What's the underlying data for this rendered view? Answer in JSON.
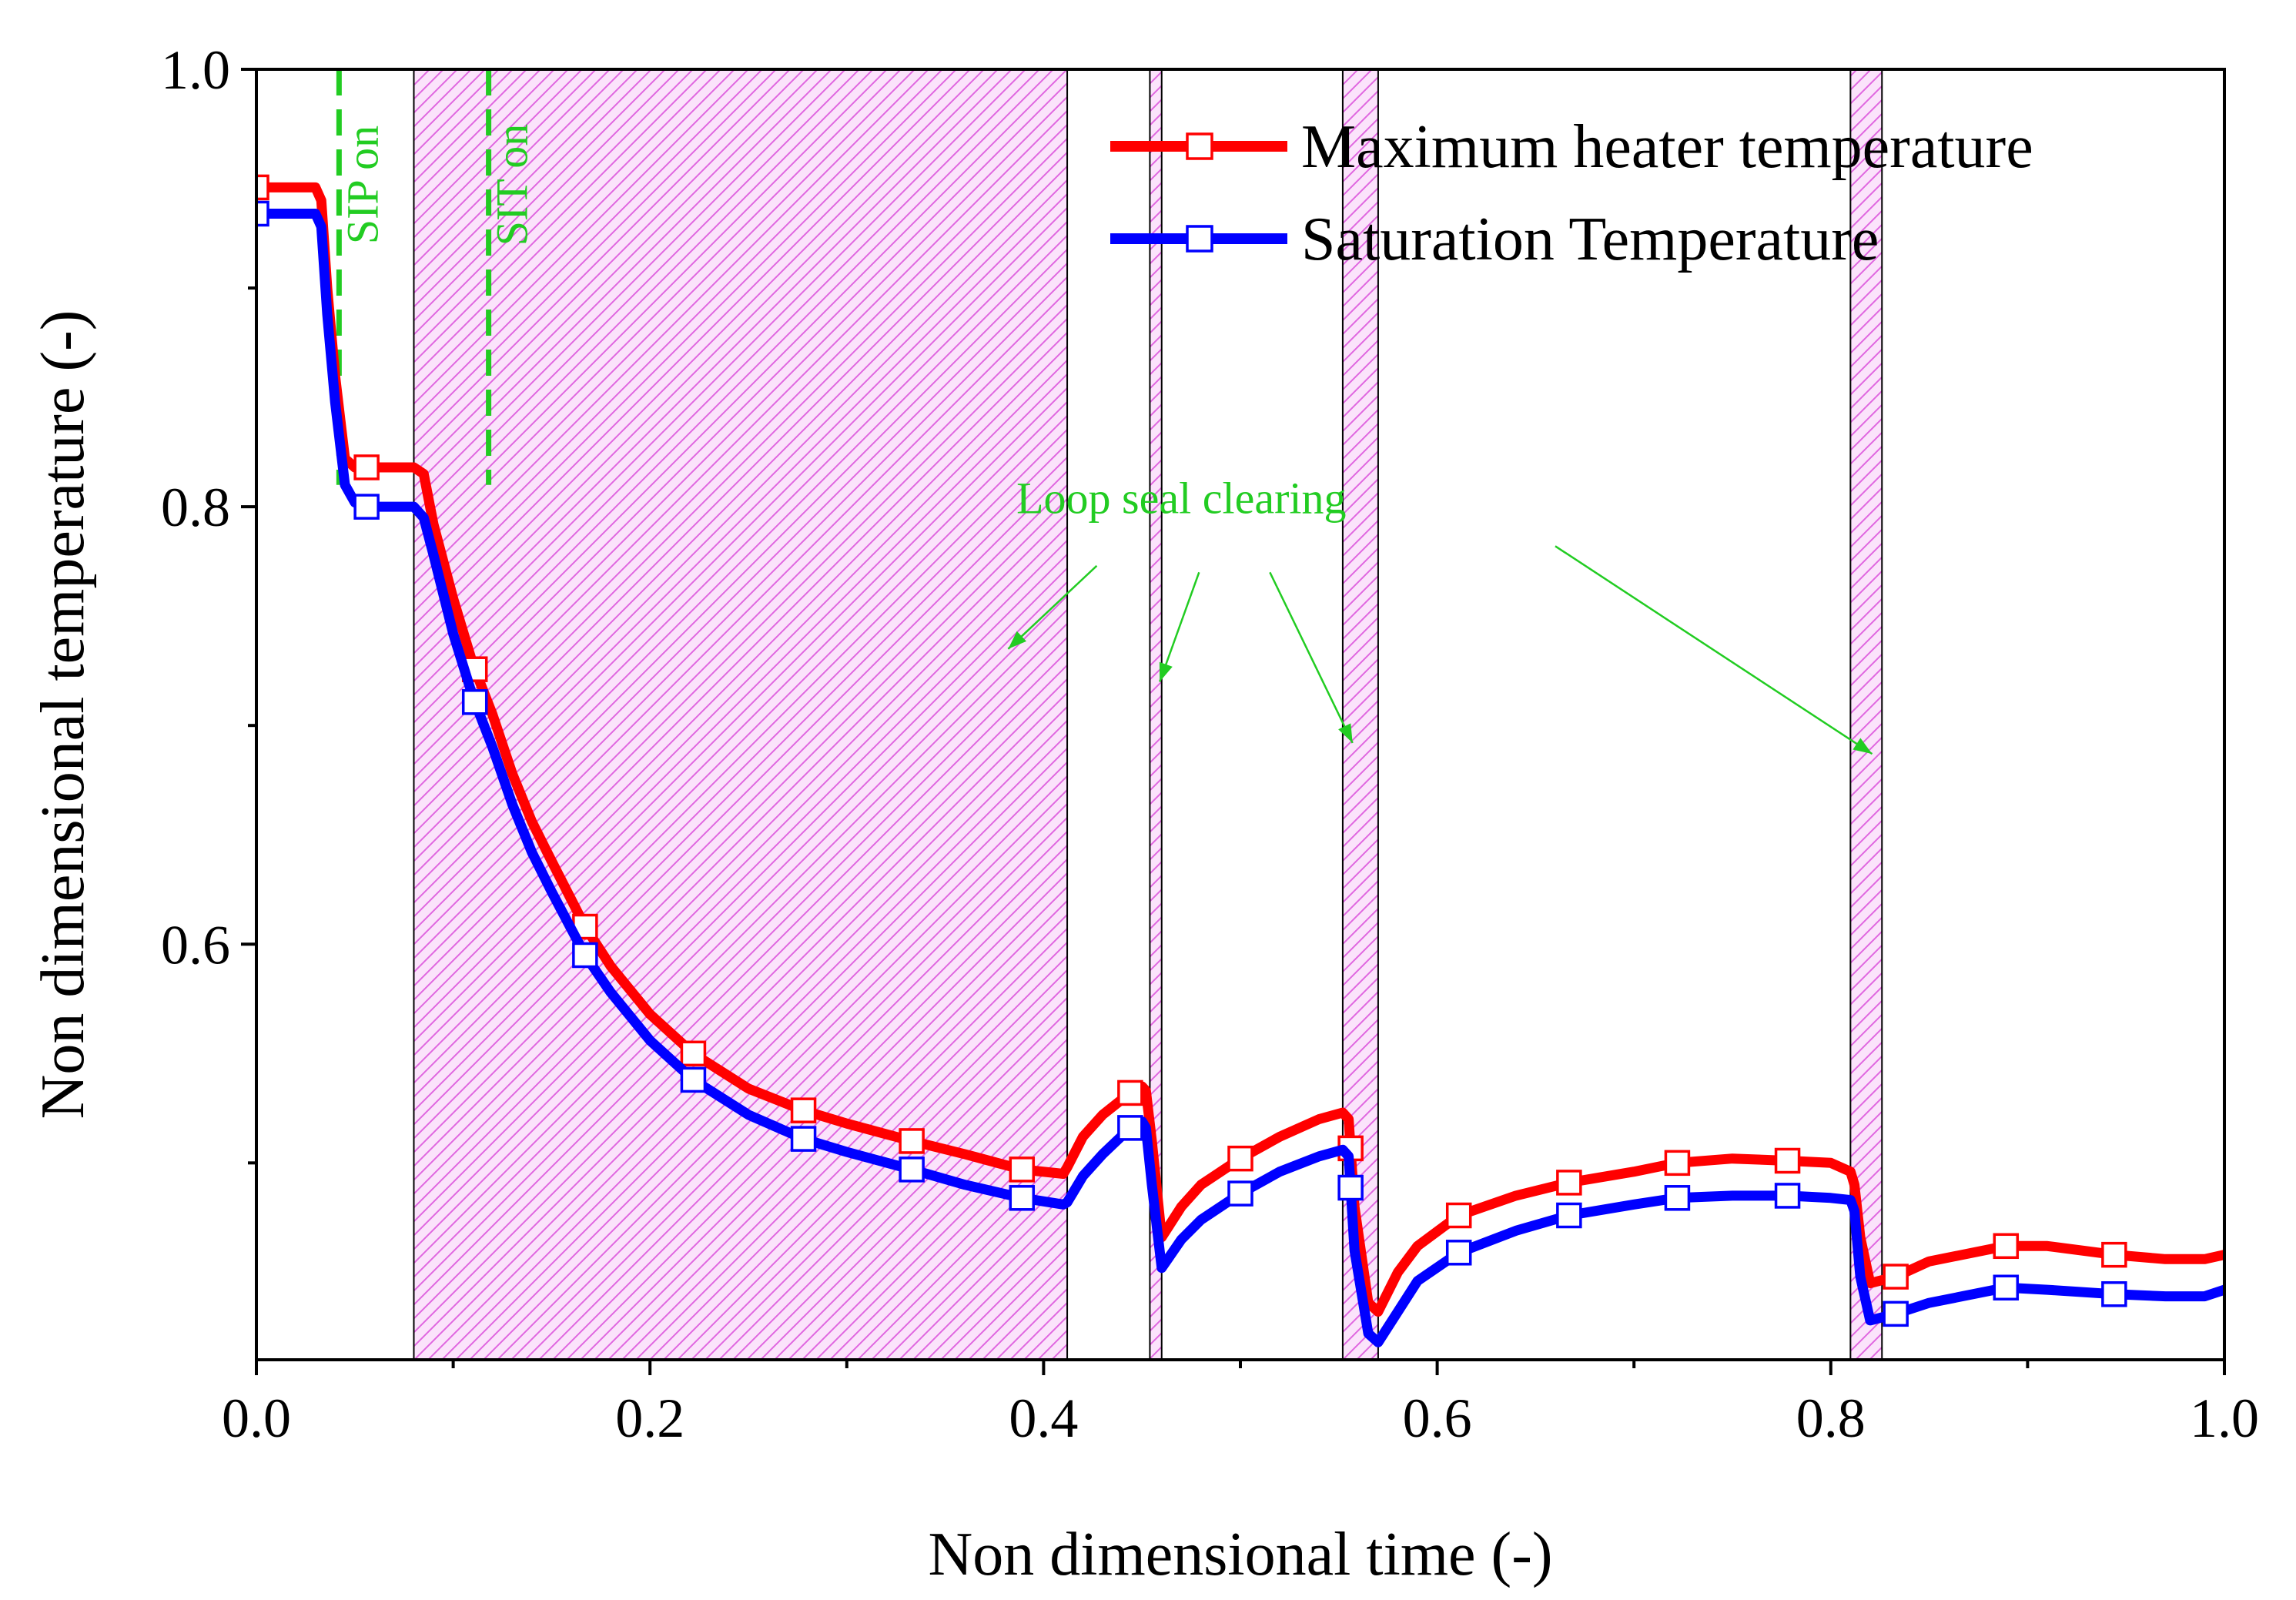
{
  "chart_data": {
    "type": "line",
    "title": "",
    "xlabel": "Non dimensional time (-)",
    "ylabel": "Non dimensional temperature (-)",
    "xlim": [
      0.0,
      1.0
    ],
    "ylim": [
      0.41,
      1.0
    ],
    "xticks": [
      0.0,
      0.2,
      0.4,
      0.6,
      0.8,
      1.0
    ],
    "xtick_labels": [
      "0.0",
      "0.2",
      "0.4",
      "0.6",
      "0.8",
      "1.0"
    ],
    "yticks": [
      0.6,
      0.8,
      1.0
    ],
    "ytick_labels": [
      "0.6",
      "0.8",
      "1.0"
    ],
    "grid": false,
    "legend_position": "top-right",
    "series": [
      {
        "name": "Maximum heater temperature",
        "color": "#ff0000",
        "marker": "open-square",
        "x": [
          0.0,
          0.01,
          0.02,
          0.03,
          0.033,
          0.036,
          0.04,
          0.045,
          0.05,
          0.055,
          0.06,
          0.065,
          0.07,
          0.075,
          0.08,
          0.085,
          0.09,
          0.1,
          0.11,
          0.12,
          0.13,
          0.14,
          0.15,
          0.167,
          0.18,
          0.2,
          0.222,
          0.25,
          0.278,
          0.3,
          0.333,
          0.36,
          0.389,
          0.41,
          0.412,
          0.42,
          0.43,
          0.444,
          0.45,
          0.452,
          0.455,
          0.46,
          0.47,
          0.48,
          0.5,
          0.52,
          0.54,
          0.552,
          0.555,
          0.558,
          0.565,
          0.57,
          0.58,
          0.59,
          0.611,
          0.64,
          0.667,
          0.7,
          0.722,
          0.75,
          0.778,
          0.8,
          0.81,
          0.812,
          0.815,
          0.82,
          0.833,
          0.85,
          0.889,
          0.91,
          0.944,
          0.97,
          0.99,
          1.0
        ],
        "values": [
          0.946,
          0.946,
          0.946,
          0.946,
          0.94,
          0.9,
          0.86,
          0.822,
          0.818,
          0.818,
          0.818,
          0.818,
          0.818,
          0.818,
          0.818,
          0.815,
          0.792,
          0.758,
          0.728,
          0.705,
          0.678,
          0.656,
          0.638,
          0.608,
          0.59,
          0.568,
          0.55,
          0.534,
          0.524,
          0.518,
          0.51,
          0.504,
          0.497,
          0.495,
          0.498,
          0.512,
          0.522,
          0.532,
          0.535,
          0.533,
          0.51,
          0.466,
          0.48,
          0.49,
          0.502,
          0.512,
          0.52,
          0.523,
          0.52,
          0.48,
          0.436,
          0.432,
          0.45,
          0.462,
          0.476,
          0.485,
          0.491,
          0.496,
          0.5,
          0.502,
          0.501,
          0.5,
          0.496,
          0.49,
          0.466,
          0.445,
          0.448,
          0.455,
          0.462,
          0.462,
          0.458,
          0.456,
          0.456,
          0.458
        ]
      },
      {
        "name": "Saturation Temperature",
        "color": "#0000ff",
        "marker": "open-square",
        "x": [
          0.0,
          0.01,
          0.02,
          0.03,
          0.033,
          0.036,
          0.04,
          0.045,
          0.05,
          0.055,
          0.06,
          0.065,
          0.07,
          0.075,
          0.08,
          0.085,
          0.09,
          0.1,
          0.11,
          0.12,
          0.13,
          0.14,
          0.15,
          0.167,
          0.18,
          0.2,
          0.222,
          0.25,
          0.278,
          0.3,
          0.333,
          0.36,
          0.389,
          0.41,
          0.412,
          0.42,
          0.43,
          0.444,
          0.45,
          0.452,
          0.455,
          0.46,
          0.47,
          0.48,
          0.5,
          0.52,
          0.54,
          0.552,
          0.555,
          0.558,
          0.565,
          0.57,
          0.58,
          0.59,
          0.611,
          0.64,
          0.667,
          0.7,
          0.722,
          0.75,
          0.778,
          0.8,
          0.81,
          0.812,
          0.815,
          0.82,
          0.833,
          0.85,
          0.889,
          0.91,
          0.944,
          0.97,
          0.99,
          1.0
        ],
        "values": [
          0.934,
          0.934,
          0.934,
          0.934,
          0.928,
          0.888,
          0.848,
          0.81,
          0.802,
          0.8,
          0.8,
          0.8,
          0.8,
          0.8,
          0.8,
          0.795,
          0.778,
          0.742,
          0.713,
          0.69,
          0.664,
          0.642,
          0.624,
          0.595,
          0.578,
          0.556,
          0.538,
          0.522,
          0.511,
          0.505,
          0.497,
          0.49,
          0.484,
          0.481,
          0.482,
          0.494,
          0.504,
          0.516,
          0.519,
          0.516,
          0.49,
          0.452,
          0.465,
          0.474,
          0.486,
          0.496,
          0.503,
          0.506,
          0.503,
          0.46,
          0.422,
          0.418,
          0.432,
          0.446,
          0.459,
          0.469,
          0.476,
          0.481,
          0.484,
          0.485,
          0.485,
          0.484,
          0.483,
          0.478,
          0.448,
          0.428,
          0.431,
          0.436,
          0.443,
          0.442,
          0.44,
          0.439,
          0.439,
          0.442
        ]
      }
    ],
    "shaded_regions": [
      {
        "x0": 0.08,
        "x1": 0.412
      },
      {
        "x0": 0.454,
        "x1": 0.46
      },
      {
        "x0": 0.552,
        "x1": 0.57
      },
      {
        "x0": 0.81,
        "x1": 0.826
      }
    ],
    "vertical_markers": [
      {
        "x": 0.042,
        "label": "SIP on",
        "color": "#22cc22"
      },
      {
        "x": 0.118,
        "label": "SIT on",
        "color": "#22cc22"
      }
    ],
    "annotations": [
      {
        "text": "Loop seal clearing",
        "color": "#22cc22",
        "text_pos": {
          "x": 0.47,
          "y": 0.797
        },
        "arrow_tails": [
          {
            "x": 0.427,
            "y": 0.773
          },
          {
            "x": 0.479,
            "y": 0.77
          },
          {
            "x": 0.515,
            "y": 0.77
          },
          {
            "x": 0.66,
            "y": 0.782
          }
        ],
        "arrow_heads": [
          {
            "x": 0.382,
            "y": 0.735
          },
          {
            "x": 0.459,
            "y": 0.72
          },
          {
            "x": 0.557,
            "y": 0.692
          },
          {
            "x": 0.821,
            "y": 0.687
          }
        ]
      }
    ]
  }
}
